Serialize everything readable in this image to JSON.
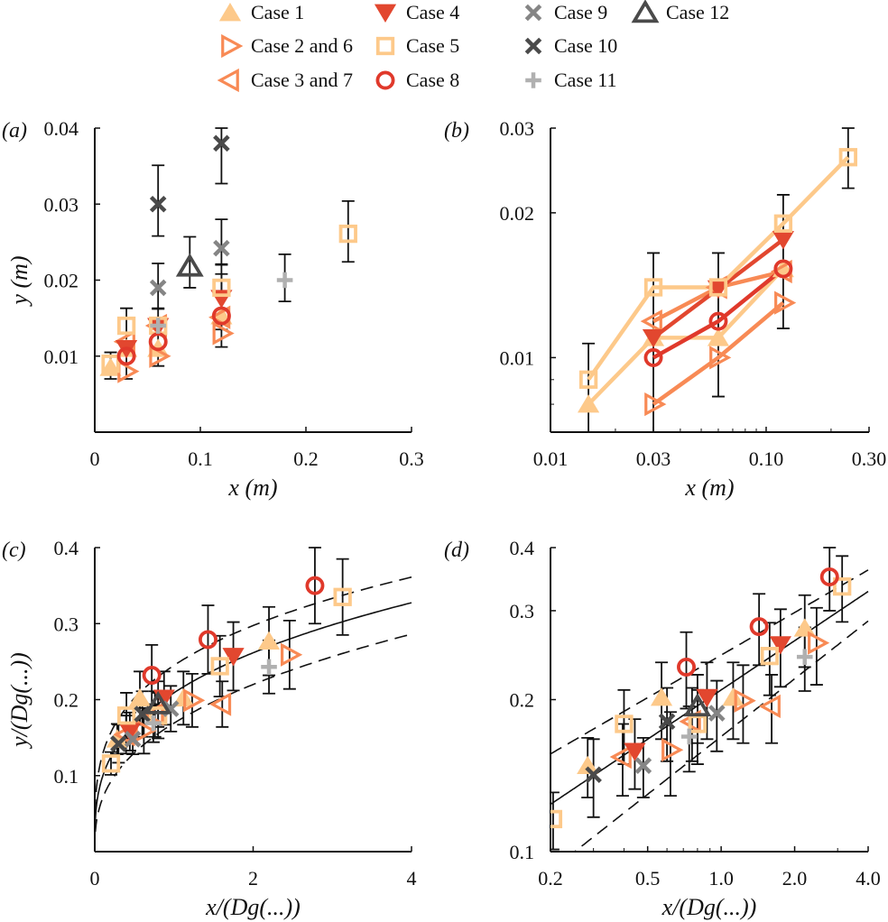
{
  "legend": [
    {
      "name": "Case 1",
      "marker": "triangle-up-filled",
      "color": "#fdc98a"
    },
    {
      "name": "Case 2 and 6",
      "marker": "triangle-right-open",
      "color": "#f88a55"
    },
    {
      "name": "Case 3 and 7",
      "marker": "triangle-left-open",
      "color": "#f88a55"
    },
    {
      "name": "Case 4",
      "marker": "triangle-down-filled",
      "color": "#e2472f"
    },
    {
      "name": "Case 5",
      "marker": "square-open",
      "color": "#fdc98a"
    },
    {
      "name": "Case 8",
      "marker": "circle-open",
      "color": "#e0392b"
    },
    {
      "name": "Case 9",
      "marker": "x",
      "color": "#858585"
    },
    {
      "name": "Case 10",
      "marker": "x",
      "color": "#4a4a4a"
    },
    {
      "name": "Case 11",
      "marker": "plus",
      "color": "#b0b0b0"
    },
    {
      "name": "Case 12",
      "marker": "triangle-up-open",
      "color": "#4a4a4a"
    }
  ],
  "chart_data": [
    {
      "panel": "(a)",
      "type": "scatter",
      "xlabel": "x (m)",
      "ylabel": "y (m)",
      "xscale": "linear",
      "yscale": "linear",
      "xlim": [
        0,
        0.3
      ],
      "ylim": [
        0,
        0.04
      ],
      "xticks": [
        0,
        0.1,
        0.2,
        0.3
      ],
      "xticklabels": [
        "0",
        "0.1",
        "0.2",
        "0.3"
      ],
      "yticks": [
        0.01,
        0.02,
        0.03,
        0.04
      ],
      "yticklabels": [
        "0.01",
        "0.02",
        "0.03",
        "0.04"
      ],
      "connect": false,
      "series": [
        {
          "name": "Case 1",
          "points": [
            [
              0.015,
              0.0085
            ],
            [
              0.03,
              0.011
            ],
            [
              0.06,
              0.011
            ],
            [
              0.12,
              0.0153
            ]
          ]
        },
        {
          "name": "Case 2 and 6",
          "points": [
            [
              0.03,
              0.008
            ],
            [
              0.06,
              0.01
            ],
            [
              0.12,
              0.013
            ]
          ]
        },
        {
          "name": "Case 3 and 7",
          "points": [
            [
              0.03,
              0.0119
            ],
            [
              0.06,
              0.014
            ],
            [
              0.12,
              0.0151
            ]
          ]
        },
        {
          "name": "Case 4",
          "points": [
            [
              0.03,
              0.011
            ],
            [
              0.06,
              0.0139
            ],
            [
              0.12,
              0.0176
            ]
          ]
        },
        {
          "name": "Case 5",
          "points": [
            [
              0.015,
              0.009
            ],
            [
              0.03,
              0.014
            ],
            [
              0.06,
              0.014
            ],
            [
              0.12,
              0.019
            ],
            [
              0.24,
              0.0261
            ]
          ]
        },
        {
          "name": "Case 8",
          "points": [
            [
              0.03,
              0.01
            ],
            [
              0.06,
              0.0119
            ],
            [
              0.12,
              0.0153
            ]
          ]
        },
        {
          "name": "Case 9",
          "points": [
            [
              0.06,
              0.019
            ],
            [
              0.12,
              0.0242
            ]
          ]
        },
        {
          "name": "Case 10",
          "points": [
            [
              0.06,
              0.03
            ],
            [
              0.12,
              0.038
            ]
          ]
        },
        {
          "name": "Case 11",
          "points": [
            [
              0.06,
              0.014
            ],
            [
              0.18,
              0.02
            ]
          ]
        },
        {
          "name": "Case 12",
          "points": [
            [
              0.09,
              0.0218
            ]
          ]
        }
      ],
      "errorbars": [
        [
          0.015,
          0.007,
          0.0105
        ],
        [
          0.03,
          0.007,
          0.0163
        ],
        [
          0.06,
          0.0087,
          0.0163
        ],
        [
          0.06,
          0.0162,
          0.0222
        ],
        [
          0.06,
          0.0258,
          0.0351
        ],
        [
          0.09,
          0.019,
          0.0257
        ],
        [
          0.12,
          0.0112,
          0.0208
        ],
        [
          0.12,
          0.0135,
          0.0221
        ],
        [
          0.12,
          0.022,
          0.028
        ],
        [
          0.12,
          0.0327,
          0.04
        ],
        [
          0.18,
          0.0172,
          0.0234
        ],
        [
          0.24,
          0.0224,
          0.0304
        ]
      ]
    },
    {
      "panel": "(b)",
      "type": "line",
      "xlabel": "x (m)",
      "ylabel": "",
      "xscale": "log",
      "yscale": "log",
      "xlim": [
        0.01,
        0.3
      ],
      "ylim": [
        0.007,
        0.03
      ],
      "xticks": [
        0.01,
        0.03,
        0.1,
        0.3
      ],
      "xticklabels": [
        "0.01",
        "0.03",
        "0.10",
        "0.30"
      ],
      "yticks": [
        0.01,
        0.02,
        0.03
      ],
      "yticklabels": [
        "0.01",
        "0.02",
        "0.03"
      ],
      "connect": true,
      "series": [
        {
          "name": "Case 1",
          "points": [
            [
              0.015,
              0.008
            ],
            [
              0.03,
              0.011
            ],
            [
              0.06,
              0.011
            ],
            [
              0.12,
              0.0153
            ]
          ]
        },
        {
          "name": "Case 2 and 6",
          "points": [
            [
              0.03,
              0.008
            ],
            [
              0.06,
              0.01
            ],
            [
              0.12,
              0.013
            ]
          ]
        },
        {
          "name": "Case 3 and 7",
          "points": [
            [
              0.03,
              0.0119
            ],
            [
              0.06,
              0.014
            ],
            [
              0.12,
              0.0151
            ]
          ]
        },
        {
          "name": "Case 4",
          "points": [
            [
              0.03,
              0.011
            ],
            [
              0.06,
              0.0139
            ],
            [
              0.12,
              0.0176
            ]
          ]
        },
        {
          "name": "Case 5",
          "points": [
            [
              0.015,
              0.009
            ],
            [
              0.03,
              0.014
            ],
            [
              0.06,
              0.014
            ],
            [
              0.12,
              0.019
            ],
            [
              0.24,
              0.0261
            ]
          ]
        },
        {
          "name": "Case 8",
          "points": [
            [
              0.03,
              0.01
            ],
            [
              0.06,
              0.0119
            ],
            [
              0.12,
              0.0153
            ]
          ]
        }
      ],
      "errorbars": [
        [
          0.015,
          0.007,
          0.0107
        ],
        [
          0.03,
          0.007,
          0.0165
        ],
        [
          0.06,
          0.0083,
          0.0165
        ],
        [
          0.12,
          0.0115,
          0.0218
        ],
        [
          0.24,
          0.0225,
          0.03
        ]
      ]
    },
    {
      "panel": "(c)",
      "type": "scatter",
      "xlabel": "x/(Dg(...))",
      "ylabel": "y/(Dg(...))",
      "xscale": "linear",
      "yscale": "linear",
      "xlim": [
        0,
        4
      ],
      "ylim": [
        0,
        0.4
      ],
      "xticks": [
        0,
        2,
        4
      ],
      "xticklabels": [
        "0",
        "2",
        "4"
      ],
      "yticks": [
        0.1,
        0.2,
        0.3,
        0.4
      ],
      "yticklabels": [
        "0.1",
        "0.2",
        "0.3",
        "0.4"
      ],
      "connect": false,
      "fits": [
        {
          "style": "solid",
          "a": 0.209,
          "b": 0.324
        },
        {
          "style": "dashed",
          "a": 0.245,
          "b": 0.28
        },
        {
          "style": "dashed",
          "a": 0.169,
          "b": 0.38
        }
      ],
      "series": "shared_scaled"
    },
    {
      "panel": "(d)",
      "type": "scatter",
      "xlabel": "x/(Dg(...))",
      "ylabel": "",
      "xscale": "log",
      "yscale": "log",
      "xlim": [
        0.2,
        4
      ],
      "ylim": [
        0.1,
        0.4
      ],
      "xticks": [
        0.2,
        0.5,
        1,
        2,
        4
      ],
      "xticklabels": [
        "0.2",
        "0.5",
        "1.0",
        "2.0",
        "4.0"
      ],
      "yticks": [
        0.1,
        0.2,
        0.3,
        0.4
      ],
      "yticklabels": [
        "0.1",
        "0.2",
        "0.3",
        "0.4"
      ],
      "connect": false,
      "fits": [
        {
          "style": "solid",
          "a": 0.209,
          "b": 0.324
        },
        {
          "style": "dashed",
          "a": 0.245,
          "b": 0.28
        },
        {
          "style": "dashed",
          "a": 0.169,
          "b": 0.38
        }
      ],
      "series": "shared_scaled"
    }
  ],
  "scaled_series": [
    {
      "name": "Case 1",
      "points": [
        [
          0.284,
          0.148,
          0.02
        ],
        [
          0.57,
          0.202,
          0.035
        ],
        [
          1.12,
          0.202,
          0.035
        ],
        [
          2.2,
          0.277,
          0.045
        ]
      ]
    },
    {
      "name": "Case 2 and 6",
      "points": [
        [
          0.62,
          0.159,
          0.03
        ],
        [
          1.23,
          0.199,
          0.035
        ],
        [
          2.46,
          0.259,
          0.045
        ]
      ]
    },
    {
      "name": "Case 3 and 7",
      "points": [
        [
          0.395,
          0.154,
          0.025
        ],
        [
          0.76,
          0.181,
          0.03
        ],
        [
          1.61,
          0.194,
          0.03
        ]
      ]
    },
    {
      "name": "Case 4",
      "points": [
        [
          0.443,
          0.158,
          0.025
        ],
        [
          0.875,
          0.202,
          0.035
        ],
        [
          1.75,
          0.257,
          0.045
        ]
      ]
    },
    {
      "name": "Case 5",
      "points": [
        [
          0.205,
          0.116,
          0.015
        ],
        [
          0.4,
          0.179,
          0.03
        ],
        [
          0.8,
          0.179,
          0.03
        ],
        [
          1.58,
          0.244,
          0.04
        ],
        [
          3.13,
          0.335,
          0.05
        ]
      ]
    },
    {
      "name": "Case 8",
      "points": [
        [
          0.72,
          0.232,
          0.04
        ],
        [
          1.43,
          0.279,
          0.045
        ],
        [
          2.78,
          0.35,
          0.05
        ]
      ]
    },
    {
      "name": "Case 9",
      "points": [
        [
          0.48,
          0.148,
          0.02
        ],
        [
          0.96,
          0.188,
          0.03
        ]
      ]
    },
    {
      "name": "Case 10",
      "points": [
        [
          0.3,
          0.142,
          0.025
        ],
        [
          0.6,
          0.181,
          0.03
        ]
      ]
    },
    {
      "name": "Case 11",
      "points": [
        [
          0.74,
          0.169,
          0.025
        ],
        [
          2.2,
          0.243,
          0.035
        ]
      ]
    },
    {
      "name": "Case 12",
      "points": [
        [
          0.8,
          0.194,
          0.03
        ]
      ]
    }
  ]
}
